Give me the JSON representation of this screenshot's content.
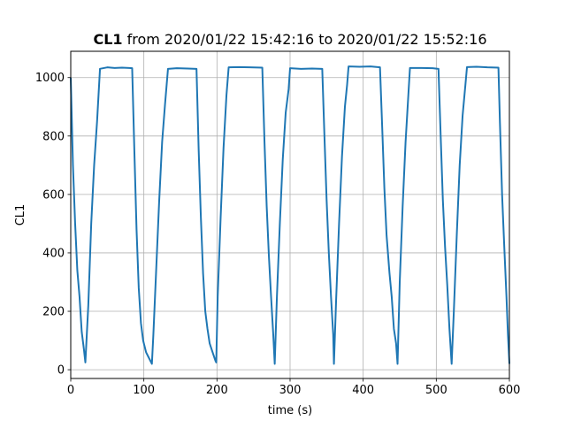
{
  "chart_data": {
    "type": "line",
    "title_bold": "CL1",
    "title_rest": " from 2020/01/22 15:42:16 to 2020/01/22 15:52:16",
    "xlabel": "time (s)",
    "ylabel": "CL1",
    "xlim": [
      0,
      600
    ],
    "ylim": [
      -30,
      1090
    ],
    "xticks": [
      0,
      100,
      200,
      300,
      400,
      500,
      600
    ],
    "yticks": [
      0,
      200,
      400,
      600,
      800,
      1000
    ],
    "grid": true,
    "series": [
      {
        "color": "#1f77b4",
        "points": [
          [
            0,
            1000
          ],
          [
            3,
            700
          ],
          [
            6,
            500
          ],
          [
            9,
            340
          ],
          [
            12,
            250
          ],
          [
            15,
            130
          ],
          [
            18,
            70
          ],
          [
            20,
            25
          ],
          [
            24,
            220
          ],
          [
            28,
            500
          ],
          [
            32,
            700
          ],
          [
            36,
            850
          ],
          [
            38,
            940
          ],
          [
            40,
            1030
          ],
          [
            50,
            1035
          ],
          [
            60,
            1033
          ],
          [
            70,
            1034
          ],
          [
            80,
            1033
          ],
          [
            84,
            1032
          ],
          [
            87,
            750
          ],
          [
            90,
            480
          ],
          [
            93,
            280
          ],
          [
            96,
            160
          ],
          [
            99,
            100
          ],
          [
            103,
            60
          ],
          [
            107,
            40
          ],
          [
            111,
            20
          ],
          [
            113,
            120
          ],
          [
            117,
            350
          ],
          [
            121,
            580
          ],
          [
            125,
            780
          ],
          [
            129,
            910
          ],
          [
            133,
            1030
          ],
          [
            145,
            1032
          ],
          [
            160,
            1031
          ],
          [
            172,
            1030
          ],
          [
            175,
            750
          ],
          [
            178,
            520
          ],
          [
            181,
            330
          ],
          [
            184,
            200
          ],
          [
            187,
            140
          ],
          [
            190,
            90
          ],
          [
            194,
            60
          ],
          [
            198,
            30
          ],
          [
            199,
            25
          ],
          [
            201,
            250
          ],
          [
            205,
            520
          ],
          [
            209,
            760
          ],
          [
            213,
            940
          ],
          [
            216,
            1035
          ],
          [
            230,
            1036
          ],
          [
            245,
            1035
          ],
          [
            262,
            1034
          ],
          [
            265,
            780
          ],
          [
            268,
            560
          ],
          [
            271,
            390
          ],
          [
            274,
            250
          ],
          [
            277,
            120
          ],
          [
            279,
            20
          ],
          [
            282,
            250
          ],
          [
            286,
            500
          ],
          [
            290,
            720
          ],
          [
            294,
            880
          ],
          [
            298,
            960
          ],
          [
            300,
            1032
          ],
          [
            315,
            1030
          ],
          [
            330,
            1031
          ],
          [
            344,
            1030
          ],
          [
            347,
            800
          ],
          [
            350,
            580
          ],
          [
            353,
            400
          ],
          [
            356,
            250
          ],
          [
            359,
            120
          ],
          [
            360,
            20
          ],
          [
            363,
            240
          ],
          [
            367,
            500
          ],
          [
            371,
            730
          ],
          [
            375,
            900
          ],
          [
            378,
            975
          ],
          [
            380,
            1038
          ],
          [
            395,
            1037
          ],
          [
            410,
            1038
          ],
          [
            423,
            1035
          ],
          [
            426,
            830
          ],
          [
            429,
            620
          ],
          [
            432,
            460
          ],
          [
            436,
            330
          ],
          [
            439,
            250
          ],
          [
            442,
            140
          ],
          [
            445,
            90
          ],
          [
            447,
            20
          ],
          [
            450,
            300
          ],
          [
            454,
            560
          ],
          [
            458,
            780
          ],
          [
            462,
            950
          ],
          [
            464,
            1033
          ],
          [
            480,
            1033
          ],
          [
            495,
            1032
          ],
          [
            503,
            1030
          ],
          [
            506,
            800
          ],
          [
            509,
            580
          ],
          [
            512,
            420
          ],
          [
            515,
            290
          ],
          [
            518,
            140
          ],
          [
            521,
            20
          ],
          [
            524,
            200
          ],
          [
            528,
            460
          ],
          [
            532,
            700
          ],
          [
            536,
            870
          ],
          [
            540,
            980
          ],
          [
            542,
            1036
          ],
          [
            555,
            1037
          ],
          [
            570,
            1035
          ],
          [
            585,
            1034
          ],
          [
            587,
            850
          ],
          [
            590,
            600
          ],
          [
            593,
            420
          ],
          [
            596,
            250
          ],
          [
            598,
            120
          ],
          [
            600,
            20
          ]
        ]
      }
    ]
  }
}
